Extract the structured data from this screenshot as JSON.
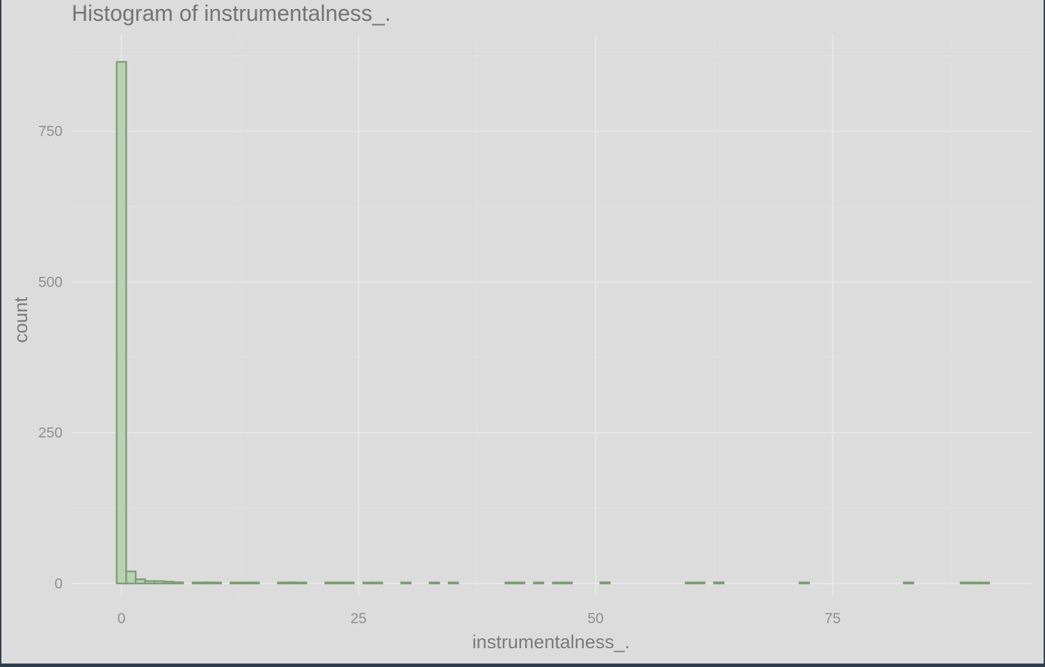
{
  "chart_data": {
    "type": "bar",
    "title": "Histogram of instrumentalness_.",
    "xlabel": "instrumentalness_.",
    "ylabel": "count",
    "x_ticks": [
      0,
      25,
      50,
      75
    ],
    "x_tick_labels": [
      "0",
      "25",
      "50",
      "75"
    ],
    "y_ticks": [
      0,
      250,
      500,
      750
    ],
    "y_tick_labels": [
      "0",
      "250",
      "500",
      "750"
    ],
    "xlim": [
      -5.25,
      96
    ],
    "ylim": [
      -22,
      910
    ],
    "grid": true,
    "legend": "none",
    "colors": {
      "fill": "#b8d3b1",
      "stroke": "#7f9b78",
      "background": "#dcdcdc"
    },
    "bin_width": 1,
    "series": [
      {
        "bins": [
          {
            "x": 0,
            "count": 865
          },
          {
            "x": 1,
            "count": 20
          },
          {
            "x": 2,
            "count": 7
          },
          {
            "x": 3,
            "count": 4
          },
          {
            "x": 4,
            "count": 4
          },
          {
            "x": 5,
            "count": 3
          },
          {
            "x": 6,
            "count": 2
          },
          {
            "x": 8,
            "count": 1
          },
          {
            "x": 9,
            "count": 2
          },
          {
            "x": 10,
            "count": 1
          },
          {
            "x": 12,
            "count": 1
          },
          {
            "x": 13,
            "count": 1
          },
          {
            "x": 14,
            "count": 1
          },
          {
            "x": 17,
            "count": 1
          },
          {
            "x": 18,
            "count": 2
          },
          {
            "x": 19,
            "count": 1
          },
          {
            "x": 22,
            "count": 1
          },
          {
            "x": 23,
            "count": 1
          },
          {
            "x": 24,
            "count": 1
          },
          {
            "x": 26,
            "count": 1
          },
          {
            "x": 27,
            "count": 1
          },
          {
            "x": 30,
            "count": 1
          },
          {
            "x": 33,
            "count": 1
          },
          {
            "x": 35,
            "count": 1
          },
          {
            "x": 41,
            "count": 1
          },
          {
            "x": 42,
            "count": 1
          },
          {
            "x": 44,
            "count": 1
          },
          {
            "x": 46,
            "count": 1
          },
          {
            "x": 47,
            "count": 1
          },
          {
            "x": 51,
            "count": 2
          },
          {
            "x": 60,
            "count": 1
          },
          {
            "x": 61,
            "count": 1
          },
          {
            "x": 63,
            "count": 2
          },
          {
            "x": 72,
            "count": 1
          },
          {
            "x": 83,
            "count": 1
          },
          {
            "x": 89,
            "count": 1
          },
          {
            "x": 90,
            "count": 1
          },
          {
            "x": 91,
            "count": 1
          }
        ]
      }
    ]
  }
}
